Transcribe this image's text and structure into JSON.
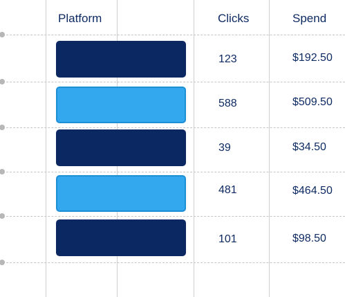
{
  "headers": {
    "platform": "Platform",
    "clicks": "Clicks",
    "spend": "Spend"
  },
  "rows": [
    {
      "platform_color": "#0c2862",
      "clicks": "123",
      "spend": "$192.50"
    },
    {
      "platform_color": "#33a8ee",
      "clicks": "588",
      "spend": "$509.50"
    },
    {
      "platform_color": "#0c2862",
      "clicks": "39",
      "spend": "$34.50"
    },
    {
      "platform_color": "#33a8ee",
      "clicks": "481",
      "spend": "$464.50"
    },
    {
      "platform_color": "#0c2862",
      "clicks": "101",
      "spend": "$98.50"
    }
  ]
}
